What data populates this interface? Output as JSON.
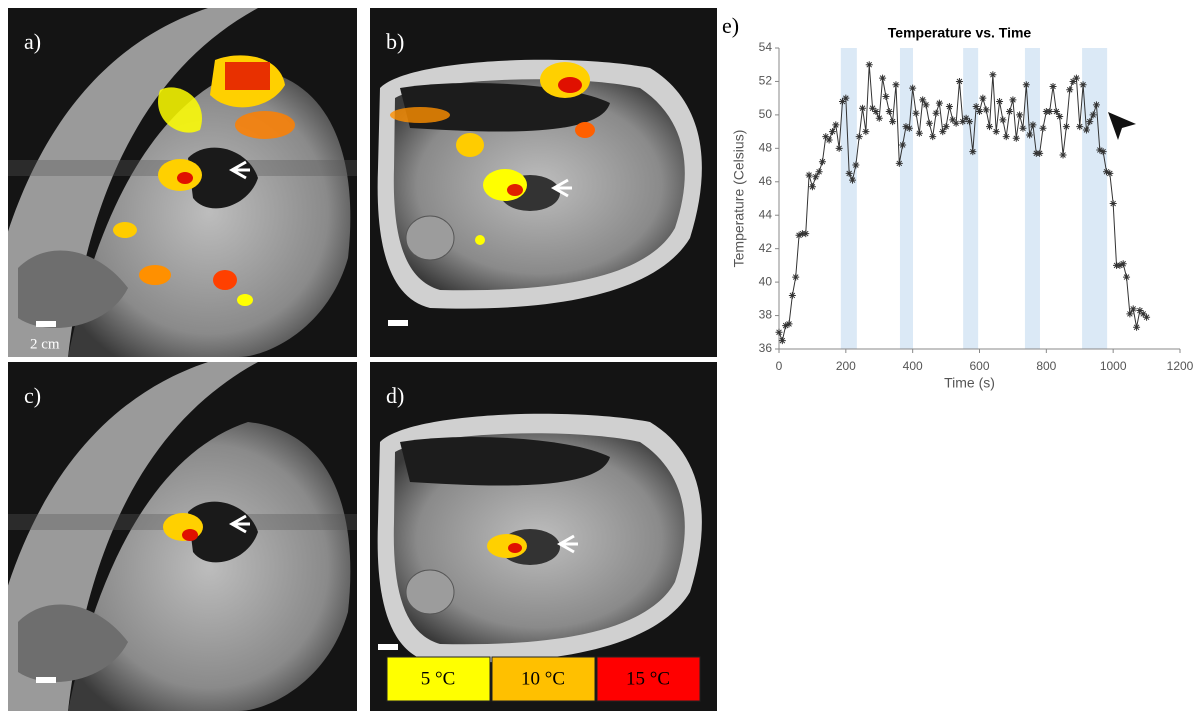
{
  "panels": [
    {
      "label": "a)"
    },
    {
      "label": "b)"
    },
    {
      "label": "c)"
    },
    {
      "label": "d)"
    }
  ],
  "scale_bar_label": "2 cm",
  "color_legend": [
    {
      "label": "5 °C",
      "color": "#ffff00"
    },
    {
      "label": "10 °C",
      "color": "#ffc000"
    },
    {
      "label": "15 °C",
      "color": "#ff0000"
    }
  ],
  "chart_panel_label": "e)",
  "chart_data": {
    "type": "line",
    "title": "Temperature vs. Time",
    "x_label": "Time (s)",
    "y_label": "Temperature (Celsius)",
    "xlim": [
      0,
      1200
    ],
    "xticks": [
      0,
      200,
      400,
      600,
      800,
      1000,
      1200
    ],
    "ylim": [
      36,
      54
    ],
    "yticks": [
      36,
      38,
      40,
      42,
      44,
      46,
      48,
      50,
      52,
      54
    ],
    "shaded_x": [
      [
        185,
        233
      ],
      [
        362,
        401
      ],
      [
        551,
        596
      ],
      [
        736,
        781
      ],
      [
        907,
        982
      ]
    ],
    "shade_color": "#dbe9f6",
    "series": [
      {
        "color": "#333333",
        "x": [
          0,
          10,
          20,
          30,
          40,
          50,
          60,
          70,
          80,
          90,
          100,
          110,
          120,
          130,
          140,
          150,
          160,
          170,
          180,
          190,
          200,
          210,
          220,
          230,
          240,
          250,
          260,
          270,
          280,
          290,
          300,
          310,
          320,
          330,
          340,
          350,
          360,
          370,
          380,
          390,
          400,
          410,
          420,
          430,
          440,
          450,
          460,
          470,
          480,
          490,
          500,
          510,
          520,
          530,
          540,
          550,
          560,
          570,
          580,
          590,
          600,
          610,
          620,
          630,
          640,
          650,
          660,
          670,
          680,
          690,
          700,
          710,
          720,
          730,
          740,
          750,
          760,
          770,
          780,
          790,
          800,
          810,
          820,
          830,
          840,
          850,
          860,
          870,
          880,
          890,
          900,
          910,
          920,
          930,
          940,
          950,
          960,
          970,
          980,
          990,
          1000,
          1010,
          1020,
          1030,
          1040,
          1050,
          1060,
          1070,
          1080,
          1090,
          1100
        ],
        "values": [
          37.0,
          36.5,
          37.4,
          37.5,
          39.2,
          40.3,
          42.8,
          42.9,
          42.9,
          46.4,
          45.7,
          46.3,
          46.6,
          47.2,
          48.7,
          48.5,
          49.0,
          49.4,
          48.0,
          50.8,
          51.0,
          46.5,
          46.1,
          47.0,
          48.7,
          50.4,
          49.0,
          53.0,
          50.4,
          50.2,
          49.8,
          52.2,
          51.1,
          50.2,
          49.6,
          51.8,
          47.1,
          48.2,
          49.3,
          49.2,
          51.6,
          50.1,
          48.9,
          50.9,
          50.6,
          49.5,
          48.7,
          50.1,
          50.7,
          49.0,
          49.3,
          50.5,
          49.7,
          49.5,
          52.0,
          49.6,
          49.8,
          49.6,
          47.8,
          50.5,
          50.2,
          51.0,
          50.3,
          49.3,
          52.4,
          49.0,
          50.8,
          49.7,
          48.7,
          50.2,
          50.9,
          48.6,
          50.0,
          49.2,
          51.8,
          48.8,
          49.4,
          47.7,
          47.7,
          49.2,
          50.2,
          50.2,
          51.7,
          50.2,
          49.9,
          47.6,
          49.3,
          51.5,
          52.0,
          52.2,
          49.3,
          51.8,
          49.1,
          49.6,
          50.0,
          50.6,
          47.9,
          47.8,
          46.6,
          46.5,
          44.7,
          41.0,
          41.0,
          41.1,
          40.3,
          38.1,
          38.4,
          37.3,
          38.3,
          38.1,
          37.9
        ]
      }
    ]
  }
}
